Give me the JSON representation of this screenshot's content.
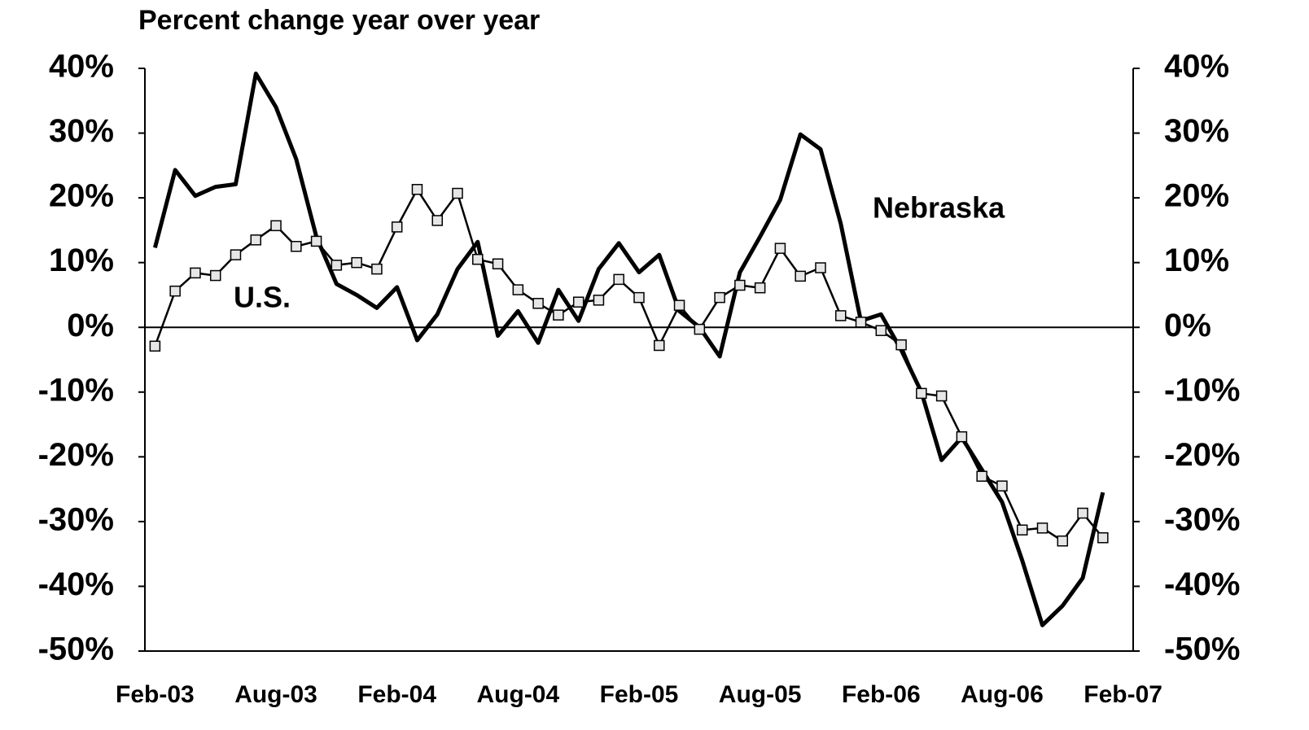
{
  "chart_data": {
    "type": "line",
    "title": "Percent change year over year",
    "categories": [
      "Feb-03",
      null,
      null,
      null,
      null,
      null,
      "Aug-03",
      null,
      null,
      null,
      null,
      null,
      "Feb-04",
      null,
      null,
      null,
      null,
      null,
      "Aug-04",
      null,
      null,
      null,
      null,
      null,
      "Feb-05",
      null,
      null,
      null,
      null,
      null,
      "Aug-05",
      null,
      null,
      null,
      null,
      null,
      "Feb-06",
      null,
      null,
      null,
      null,
      null,
      "Aug-06",
      null,
      null,
      null,
      null,
      null,
      "Feb-07"
    ],
    "series": [
      {
        "name": "Nebraska",
        "color": "#000000",
        "marker": "none",
        "values": [
          12.3,
          24.3,
          20.3,
          21.7,
          22.1,
          39.2,
          34,
          26,
          14,
          6.7,
          5,
          3,
          6.2,
          -2,
          2,
          9,
          13.2,
          -1.3,
          2.5,
          -2.4,
          5.8,
          1,
          9,
          13,
          8.5,
          11.2,
          2.5,
          0,
          -4.5,
          8.5,
          14,
          19.7,
          29.8,
          27.5,
          16,
          1,
          2,
          -3.5,
          -10,
          -20.5,
          -17,
          -22,
          -27,
          -36,
          -46,
          -43,
          -38.7,
          -25.5,
          null
        ]
      },
      {
        "name": "U.S.",
        "color": "#000000",
        "marker": "square",
        "marker_color": "#e6e6e6",
        "values": [
          -2.9,
          5.6,
          8.4,
          8,
          11.2,
          13.5,
          15.7,
          12.5,
          13.3,
          9.6,
          10,
          9,
          15.5,
          21.3,
          16.5,
          20.7,
          10.5,
          9.8,
          5.8,
          3.7,
          1.9,
          3.9,
          4.2,
          7.4,
          4.6,
          -2.8,
          3.4,
          -0.3,
          4.6,
          6.5,
          6.1,
          12.2,
          7.9,
          9.2,
          1.8,
          0.8,
          -0.5,
          -2.7,
          -10.2,
          -10.6,
          -16.9,
          -23,
          -24.5,
          -31.3,
          -31,
          -33,
          -28.7,
          -32.5,
          null
        ]
      }
    ],
    "ylim": [
      -50,
      40
    ],
    "yticks": [
      {
        "value": 40,
        "label": "40%"
      },
      {
        "value": 30,
        "label": "30%"
      },
      {
        "value": 20,
        "label": "20%"
      },
      {
        "value": 10,
        "label": "10%"
      },
      {
        "value": 0,
        "label": "0%"
      },
      {
        "value": -10,
        "label": "-10%"
      },
      {
        "value": -20,
        "label": "-20%"
      },
      {
        "value": -30,
        "label": "-30%"
      },
      {
        "value": -40,
        "label": "-40%"
      },
      {
        "value": -50,
        "label": "-50%"
      }
    ],
    "y2lim": [
      -50,
      40
    ],
    "y2ticks": [
      {
        "value": 40,
        "label": "40%"
      },
      {
        "value": 30,
        "label": "30%"
      },
      {
        "value": 20,
        "label": "20%"
      },
      {
        "value": 10,
        "label": "10%"
      },
      {
        "value": 0,
        "label": "0%"
      },
      {
        "value": -10,
        "label": "-10%"
      },
      {
        "value": -20,
        "label": "-20%"
      },
      {
        "value": -30,
        "label": "-30%"
      },
      {
        "value": -40,
        "label": "-40%"
      },
      {
        "value": -50,
        "label": "-50%"
      }
    ],
    "grid": false
  }
}
